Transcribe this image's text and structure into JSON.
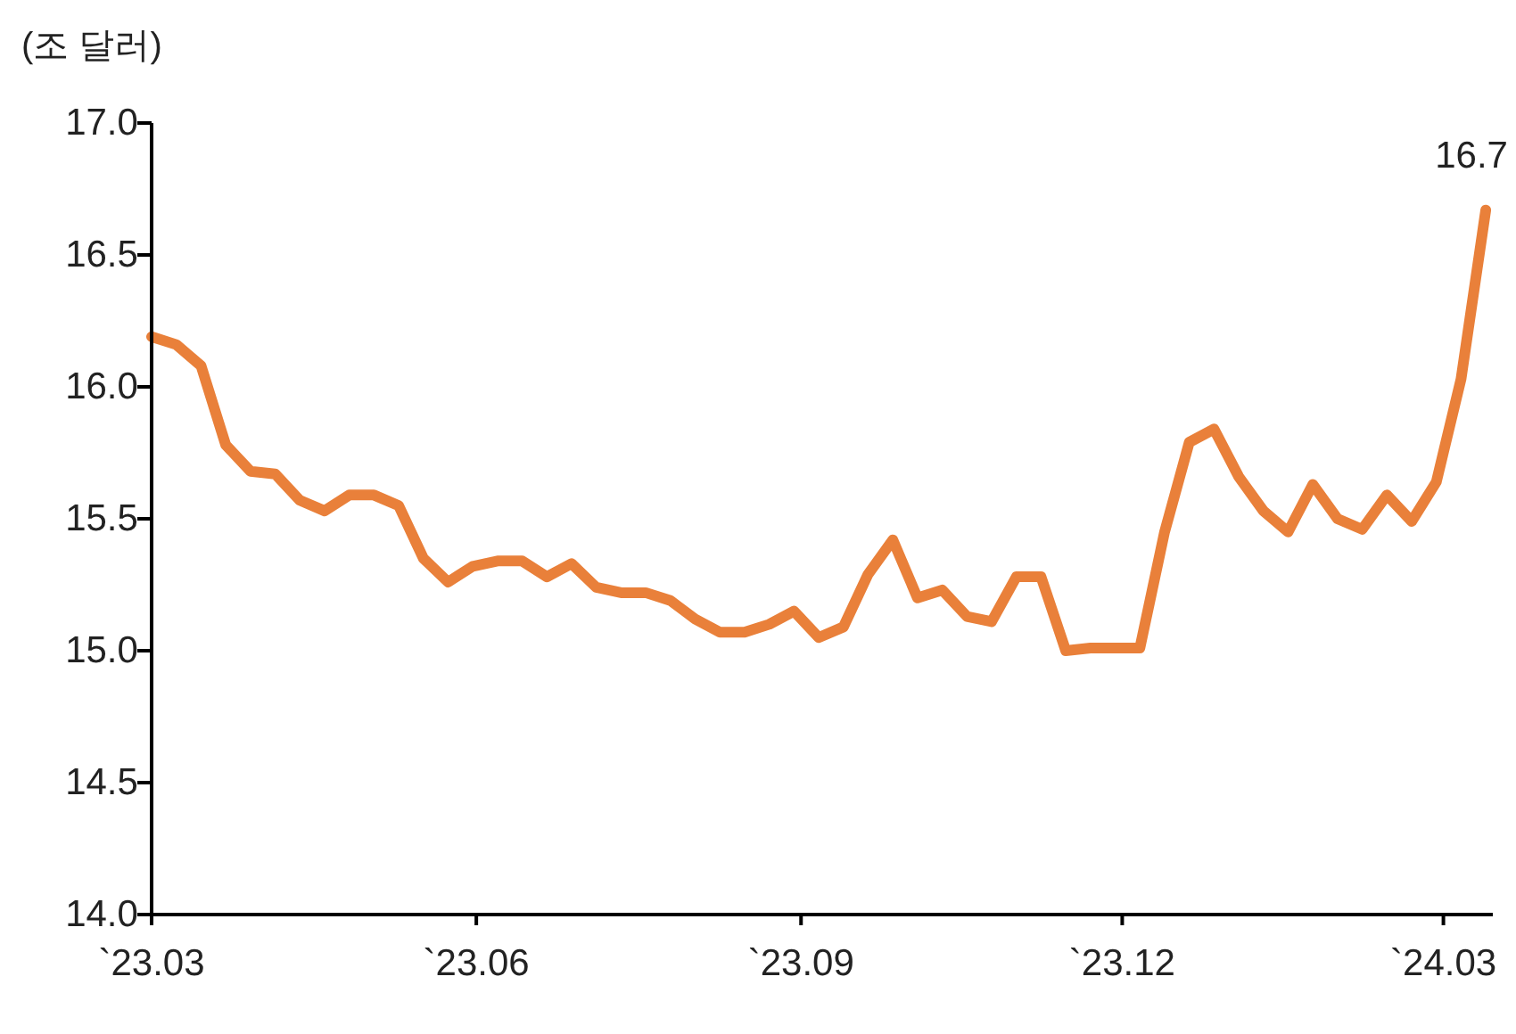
{
  "chart_data": {
    "type": "line",
    "ylabel": "(조 달러)",
    "x": [
      "2023-03-01",
      "2023-03-08",
      "2023-03-15",
      "2023-03-22",
      "2023-03-29",
      "2023-04-05",
      "2023-04-12",
      "2023-04-19",
      "2023-04-26",
      "2023-05-03",
      "2023-05-10",
      "2023-05-17",
      "2023-05-24",
      "2023-05-31",
      "2023-06-07",
      "2023-06-14",
      "2023-06-21",
      "2023-06-28",
      "2023-07-05",
      "2023-07-12",
      "2023-07-19",
      "2023-07-26",
      "2023-08-02",
      "2023-08-09",
      "2023-08-16",
      "2023-08-23",
      "2023-08-30",
      "2023-09-06",
      "2023-09-13",
      "2023-09-20",
      "2023-09-27",
      "2023-10-04",
      "2023-10-11",
      "2023-10-18",
      "2023-10-25",
      "2023-11-01",
      "2023-11-08",
      "2023-11-15",
      "2023-11-22",
      "2023-11-29",
      "2023-12-06",
      "2023-12-13",
      "2023-12-20",
      "2023-12-27",
      "2024-01-03",
      "2024-01-10",
      "2024-01-17",
      "2024-01-24",
      "2024-01-31",
      "2024-02-07",
      "2024-02-14",
      "2024-02-21",
      "2024-02-28",
      "2024-03-06",
      "2024-03-13"
    ],
    "series": [
      {
        "color": "#e9803a",
        "values": [
          16.19,
          16.16,
          16.08,
          15.78,
          15.68,
          15.67,
          15.57,
          15.53,
          15.59,
          15.59,
          15.55,
          15.35,
          15.26,
          15.32,
          15.34,
          15.34,
          15.28,
          15.33,
          15.24,
          15.22,
          15.22,
          15.19,
          15.12,
          15.07,
          15.07,
          15.1,
          15.15,
          15.05,
          15.09,
          15.29,
          15.42,
          15.2,
          15.23,
          15.13,
          15.11,
          15.28,
          15.28,
          15.0,
          15.01,
          15.01,
          15.01,
          15.45,
          15.79,
          15.84,
          15.66,
          15.53,
          15.45,
          15.63,
          15.5,
          15.46,
          15.59,
          15.49,
          15.64,
          16.03,
          16.67
        ]
      }
    ],
    "xlim": [
      "2023-03-01",
      "2024-03-15"
    ],
    "xticks": [
      {
        "value": "2023-03-01",
        "label": "`23.03"
      },
      {
        "value": "2023-06-01",
        "label": "`23.06"
      },
      {
        "value": "2023-09-01",
        "label": "`23.09"
      },
      {
        "value": "2023-12-01",
        "label": "`23.12"
      },
      {
        "value": "2024-03-01",
        "label": "`24.03"
      }
    ],
    "ylim": [
      14,
      17
    ],
    "yticks": [
      {
        "value": 14,
        "label": "14.0"
      },
      {
        "value": 14.5,
        "label": "14.5"
      },
      {
        "value": 15,
        "label": "15.0"
      },
      {
        "value": 15.5,
        "label": "15.5"
      },
      {
        "value": 16,
        "label": "16.0"
      },
      {
        "value": 16.5,
        "label": "16.5"
      },
      {
        "value": 17,
        "label": "17.0"
      }
    ],
    "annotations": [
      {
        "text": "16.7",
        "x": "2024-03-13",
        "y": 16.67
      }
    ],
    "grid": false,
    "marker": "none",
    "line_style": "solid"
  }
}
